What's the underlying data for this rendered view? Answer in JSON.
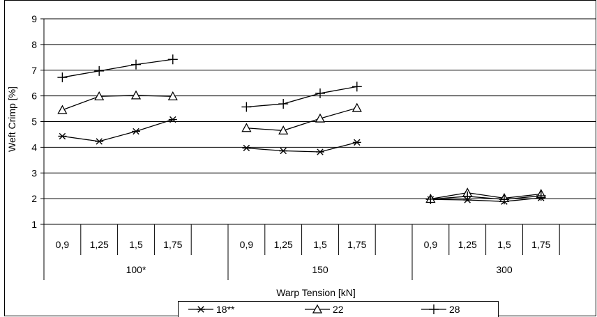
{
  "chart_data": {
    "type": "line",
    "title": "",
    "ylabel": "Weft Crimp [%]",
    "xlabel": "Warp Tension [kN]",
    "ylim": [
      1,
      9
    ],
    "y_ticks": [
      "1",
      "2",
      "3",
      "4",
      "5",
      "6",
      "7",
      "8",
      "9"
    ],
    "grid": true,
    "legend_position": "bottom",
    "groups": [
      {
        "label": "100*",
        "categories": [
          "0,9",
          "1,25",
          "1,5",
          "1,75"
        ]
      },
      {
        "label": "150",
        "categories": [
          "0,9",
          "1,25",
          "1,5",
          "1,75"
        ]
      },
      {
        "label": "300",
        "categories": [
          "0,9",
          "1,25",
          "1,5",
          "1,75"
        ]
      }
    ],
    "series": [
      {
        "name": "18**",
        "marker": "asterisk",
        "values": [
          [
            4.43,
            4.23,
            4.62,
            5.08
          ],
          [
            3.97,
            3.86,
            3.82,
            4.19
          ],
          [
            1.97,
            1.95,
            1.89,
            2.03
          ]
        ]
      },
      {
        "name": "22",
        "marker": "triangle",
        "values": [
          [
            5.45,
            5.98,
            6.02,
            5.98
          ],
          [
            4.75,
            4.65,
            5.12,
            5.53
          ],
          [
            1.99,
            2.23,
            2.02,
            2.18
          ]
        ]
      },
      {
        "name": "28",
        "marker": "plus",
        "values": [
          [
            6.72,
            6.97,
            7.22,
            7.42
          ],
          [
            5.57,
            5.69,
            6.1,
            6.36
          ],
          [
            1.98,
            2.09,
            1.97,
            2.11
          ]
        ]
      }
    ]
  }
}
